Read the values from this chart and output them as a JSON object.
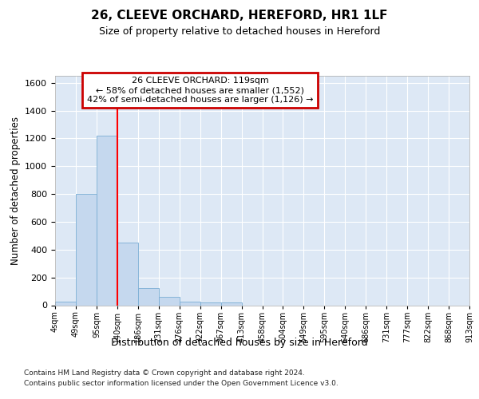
{
  "title": "26, CLEEVE ORCHARD, HEREFORD, HR1 1LF",
  "subtitle": "Size of property relative to detached houses in Hereford",
  "xlabel": "Distribution of detached houses by size in Hereford",
  "ylabel": "Number of detached properties",
  "bar_values": [
    25,
    800,
    1220,
    450,
    125,
    60,
    25,
    20,
    20,
    0,
    0,
    0,
    0,
    0,
    0,
    0,
    0,
    0,
    0,
    0
  ],
  "bar_color": "#c5d8ee",
  "bar_edge_color": "#7aadd4",
  "bin_labels": [
    "4sqm",
    "49sqm",
    "95sqm",
    "140sqm",
    "186sqm",
    "231sqm",
    "276sqm",
    "322sqm",
    "367sqm",
    "413sqm",
    "458sqm",
    "504sqm",
    "549sqm",
    "595sqm",
    "640sqm",
    "686sqm",
    "731sqm",
    "777sqm",
    "822sqm",
    "868sqm",
    "913sqm"
  ],
  "red_line_x": 3.0,
  "ylim": [
    0,
    1650
  ],
  "yticks": [
    0,
    200,
    400,
    600,
    800,
    1000,
    1200,
    1400,
    1600
  ],
  "annotation_title": "26 CLEEVE ORCHARD: 119sqm",
  "annotation_line1": "← 58% of detached houses are smaller (1,552)",
  "annotation_line2": "42% of semi-detached houses are larger (1,126) →",
  "annotation_box_color": "#ffffff",
  "annotation_border_color": "#cc0000",
  "bg_color": "#dde8f5",
  "grid_color": "#ffffff",
  "footer1": "Contains HM Land Registry data © Crown copyright and database right 2024.",
  "footer2": "Contains public sector information licensed under the Open Government Licence v3.0."
}
